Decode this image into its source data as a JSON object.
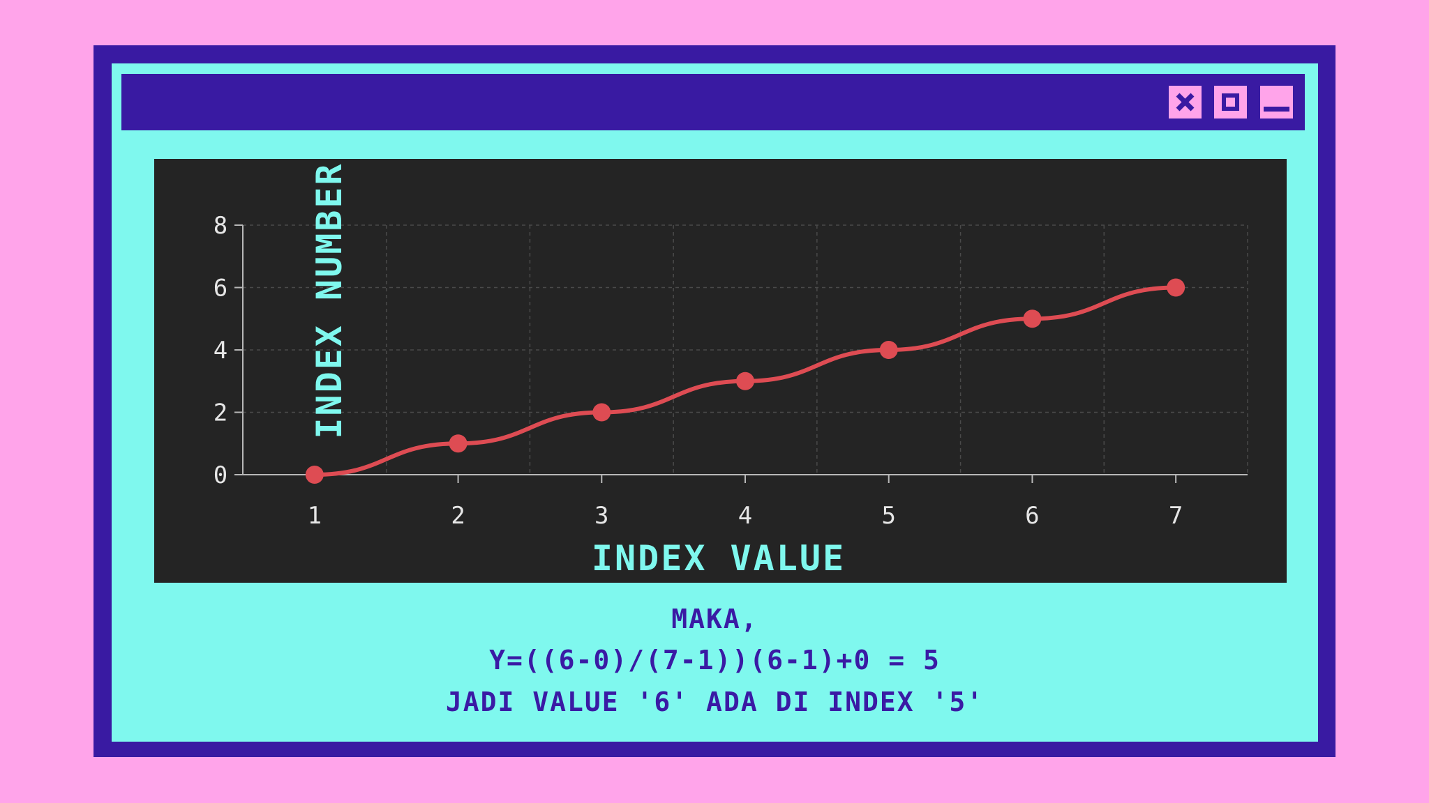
{
  "window": {
    "close_icon": "close-x-icon",
    "maximize_icon": "maximize-square-icon",
    "minimize_icon": "minimize-bar-icon",
    "colors": {
      "background": "#ffa4ea",
      "frame": "#391aa2",
      "window_body": "#7ff8ee",
      "chart_bg": "#242424",
      "line": "#de4c53",
      "axis_label": "#7ff8ee",
      "caption": "#3a1aa4"
    }
  },
  "chart_data": {
    "type": "line",
    "x": [
      1,
      2,
      3,
      4,
      5,
      6,
      7
    ],
    "series": [
      {
        "values": [
          0,
          1,
          2,
          3,
          4,
          5,
          6
        ]
      }
    ],
    "xlabel": "INDEX VALUE",
    "ylabel": "INDEX NUMBER",
    "xticks": [
      "1",
      "2",
      "3",
      "4",
      "5",
      "6",
      "7"
    ],
    "yticks": [
      "0",
      "2",
      "4",
      "6",
      "8"
    ],
    "ylim": [
      0,
      8
    ],
    "grid": true,
    "smooth": true,
    "line_color": "#de4c53"
  },
  "caption": {
    "line1": "MAKA,",
    "line2": "Y=((6-0)/(7-1))(6-1)+0 = 5",
    "line3": "JADI VALUE '6' ADA DI INDEX '5'"
  }
}
